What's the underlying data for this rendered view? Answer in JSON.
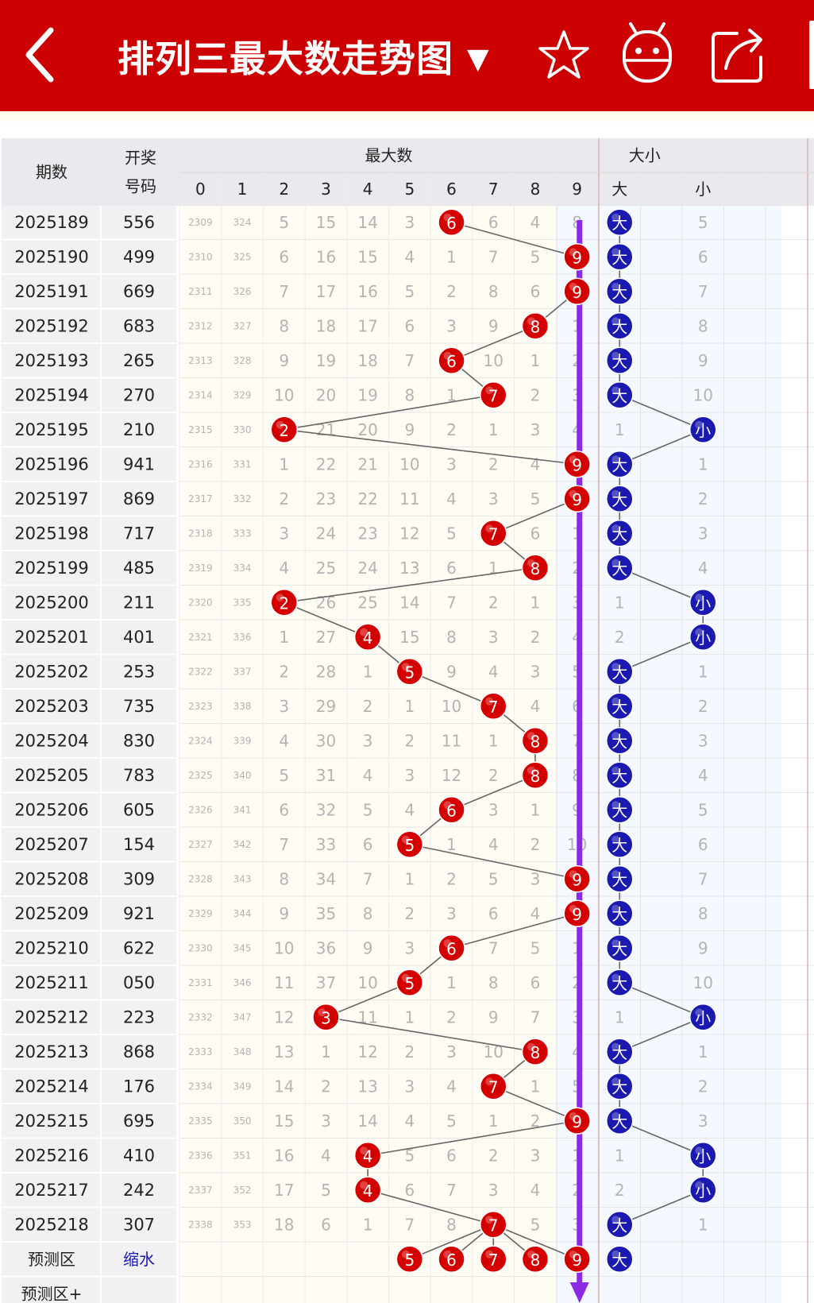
{
  "header": {
    "title": "排列三最大数走势图",
    "dropdown_glyph": "▼",
    "icons": [
      "back-arrow-icon",
      "star-icon",
      "robot-icon",
      "share-icon"
    ],
    "colors": {
      "bar": "#cc0000",
      "text": "#ffffff"
    }
  },
  "table": {
    "col_period": "期数",
    "col_draw": "开奖号码",
    "group_max": "最大数",
    "group_size": "大小",
    "size_big": "大",
    "size_small": "小",
    "digit_headers": [
      "0",
      "1",
      "2",
      "3",
      "4",
      "5",
      "6",
      "7",
      "8",
      "9"
    ],
    "rows": [
      {
        "period": "2025189",
        "draw": "556",
        "digits": [
          "2309",
          "324",
          "5",
          "15",
          "14",
          "3",
          "6",
          "6",
          "4",
          "8"
        ],
        "max": 6,
        "size": "大",
        "size_cells": [
          "大",
          "5"
        ]
      },
      {
        "period": "2025190",
        "draw": "499",
        "digits": [
          "2310",
          "325",
          "6",
          "16",
          "15",
          "4",
          "1",
          "7",
          "5",
          "9"
        ],
        "max": 9,
        "size": "大",
        "size_cells": [
          "大",
          "6"
        ]
      },
      {
        "period": "2025191",
        "draw": "669",
        "digits": [
          "2311",
          "326",
          "7",
          "17",
          "16",
          "5",
          "2",
          "8",
          "6",
          "9"
        ],
        "max": 9,
        "size": "大",
        "size_cells": [
          "大",
          "7"
        ]
      },
      {
        "period": "2025192",
        "draw": "683",
        "digits": [
          "2312",
          "327",
          "8",
          "18",
          "17",
          "6",
          "3",
          "9",
          "8",
          "1"
        ],
        "max": 8,
        "size": "大",
        "size_cells": [
          "大",
          "8"
        ]
      },
      {
        "period": "2025193",
        "draw": "265",
        "digits": [
          "2313",
          "328",
          "9",
          "19",
          "18",
          "7",
          "6",
          "10",
          "1",
          "2"
        ],
        "max": 6,
        "size": "大",
        "size_cells": [
          "大",
          "9"
        ]
      },
      {
        "period": "2025194",
        "draw": "270",
        "digits": [
          "2314",
          "329",
          "10",
          "20",
          "19",
          "8",
          "1",
          "7",
          "2",
          "3"
        ],
        "max": 7,
        "size": "大",
        "size_cells": [
          "大",
          "10"
        ]
      },
      {
        "period": "2025195",
        "draw": "210",
        "digits": [
          "2315",
          "330",
          "2",
          "21",
          "20",
          "9",
          "2",
          "1",
          "3",
          "4"
        ],
        "max": 2,
        "size": "小",
        "size_cells": [
          "1",
          "小"
        ]
      },
      {
        "period": "2025196",
        "draw": "941",
        "digits": [
          "2316",
          "331",
          "1",
          "22",
          "21",
          "10",
          "3",
          "2",
          "4",
          "9"
        ],
        "max": 9,
        "size": "大",
        "size_cells": [
          "大",
          "1"
        ]
      },
      {
        "period": "2025197",
        "draw": "869",
        "digits": [
          "2317",
          "332",
          "2",
          "23",
          "22",
          "11",
          "4",
          "3",
          "5",
          "9"
        ],
        "max": 9,
        "size": "大",
        "size_cells": [
          "大",
          "2"
        ]
      },
      {
        "period": "2025198",
        "draw": "717",
        "digits": [
          "2318",
          "333",
          "3",
          "24",
          "23",
          "12",
          "5",
          "7",
          "6",
          "1"
        ],
        "max": 7,
        "size": "大",
        "size_cells": [
          "大",
          "3"
        ]
      },
      {
        "period": "2025199",
        "draw": "485",
        "digits": [
          "2319",
          "334",
          "4",
          "25",
          "24",
          "13",
          "6",
          "1",
          "8",
          "2"
        ],
        "max": 8,
        "size": "大",
        "size_cells": [
          "大",
          "4"
        ]
      },
      {
        "period": "2025200",
        "draw": "211",
        "digits": [
          "2320",
          "335",
          "2",
          "26",
          "25",
          "14",
          "7",
          "2",
          "1",
          "3"
        ],
        "max": 2,
        "size": "小",
        "size_cells": [
          "1",
          "小"
        ]
      },
      {
        "period": "2025201",
        "draw": "401",
        "digits": [
          "2321",
          "336",
          "1",
          "27",
          "4",
          "15",
          "8",
          "3",
          "2",
          "4"
        ],
        "max": 4,
        "size": "小",
        "size_cells": [
          "2",
          "小"
        ]
      },
      {
        "period": "2025202",
        "draw": "253",
        "digits": [
          "2322",
          "337",
          "2",
          "28",
          "1",
          "5",
          "9",
          "4",
          "3",
          "5"
        ],
        "max": 5,
        "size": "大",
        "size_cells": [
          "大",
          "1"
        ]
      },
      {
        "period": "2025203",
        "draw": "735",
        "digits": [
          "2323",
          "338",
          "3",
          "29",
          "2",
          "1",
          "10",
          "7",
          "4",
          "6"
        ],
        "max": 7,
        "size": "大",
        "size_cells": [
          "大",
          "2"
        ]
      },
      {
        "period": "2025204",
        "draw": "830",
        "digits": [
          "2324",
          "339",
          "4",
          "30",
          "3",
          "2",
          "11",
          "1",
          "8",
          "7"
        ],
        "max": 8,
        "size": "大",
        "size_cells": [
          "大",
          "3"
        ]
      },
      {
        "period": "2025205",
        "draw": "783",
        "digits": [
          "2325",
          "340",
          "5",
          "31",
          "4",
          "3",
          "12",
          "2",
          "8",
          "8"
        ],
        "max": 8,
        "size": "大",
        "size_cells": [
          "大",
          "4"
        ]
      },
      {
        "period": "2025206",
        "draw": "605",
        "digits": [
          "2326",
          "341",
          "6",
          "32",
          "5",
          "4",
          "6",
          "3",
          "1",
          "9"
        ],
        "max": 6,
        "size": "大",
        "size_cells": [
          "大",
          "5"
        ]
      },
      {
        "period": "2025207",
        "draw": "154",
        "digits": [
          "2327",
          "342",
          "7",
          "33",
          "6",
          "5",
          "1",
          "4",
          "2",
          "10"
        ],
        "max": 5,
        "size": "大",
        "size_cells": [
          "大",
          "6"
        ]
      },
      {
        "period": "2025208",
        "draw": "309",
        "digits": [
          "2328",
          "343",
          "8",
          "34",
          "7",
          "1",
          "2",
          "5",
          "3",
          "9"
        ],
        "max": 9,
        "size": "大",
        "size_cells": [
          "大",
          "7"
        ]
      },
      {
        "period": "2025209",
        "draw": "921",
        "digits": [
          "2329",
          "344",
          "9",
          "35",
          "8",
          "2",
          "3",
          "6",
          "4",
          "9"
        ],
        "max": 9,
        "size": "大",
        "size_cells": [
          "大",
          "8"
        ]
      },
      {
        "period": "2025210",
        "draw": "622",
        "digits": [
          "2330",
          "345",
          "10",
          "36",
          "9",
          "3",
          "6",
          "7",
          "5",
          "1"
        ],
        "max": 6,
        "size": "大",
        "size_cells": [
          "大",
          "9"
        ]
      },
      {
        "period": "2025211",
        "draw": "050",
        "digits": [
          "2331",
          "346",
          "11",
          "37",
          "10",
          "5",
          "1",
          "8",
          "6",
          "2"
        ],
        "max": 5,
        "size": "大",
        "size_cells": [
          "大",
          "10"
        ]
      },
      {
        "period": "2025212",
        "draw": "223",
        "digits": [
          "2332",
          "347",
          "12",
          "3",
          "11",
          "1",
          "2",
          "9",
          "7",
          "3"
        ],
        "max": 3,
        "size": "小",
        "size_cells": [
          "1",
          "小"
        ]
      },
      {
        "period": "2025213",
        "draw": "868",
        "digits": [
          "2333",
          "348",
          "13",
          "1",
          "12",
          "2",
          "3",
          "10",
          "8",
          "4"
        ],
        "max": 8,
        "size": "大",
        "size_cells": [
          "大",
          "1"
        ]
      },
      {
        "period": "2025214",
        "draw": "176",
        "digits": [
          "2334",
          "349",
          "14",
          "2",
          "13",
          "3",
          "4",
          "7",
          "1",
          "5"
        ],
        "max": 7,
        "size": "大",
        "size_cells": [
          "大",
          "2"
        ]
      },
      {
        "period": "2025215",
        "draw": "695",
        "digits": [
          "2335",
          "350",
          "15",
          "3",
          "14",
          "4",
          "5",
          "1",
          "2",
          "9"
        ],
        "max": 9,
        "size": "大",
        "size_cells": [
          "大",
          "3"
        ]
      },
      {
        "period": "2025216",
        "draw": "410",
        "digits": [
          "2336",
          "351",
          "16",
          "4",
          "4",
          "5",
          "6",
          "2",
          "3",
          "1"
        ],
        "max": 4,
        "size": "小",
        "size_cells": [
          "1",
          "小"
        ]
      },
      {
        "period": "2025217",
        "draw": "242",
        "digits": [
          "2337",
          "352",
          "17",
          "5",
          "4",
          "6",
          "7",
          "3",
          "4",
          "2"
        ],
        "max": 4,
        "size": "小",
        "size_cells": [
          "2",
          "小"
        ]
      },
      {
        "period": "2025218",
        "draw": "307",
        "digits": [
          "2338",
          "353",
          "18",
          "6",
          "1",
          "7",
          "8",
          "7",
          "5",
          "3"
        ],
        "max": 7,
        "size": "大",
        "size_cells": [
          "大",
          "1"
        ]
      }
    ],
    "prediction": {
      "label": "预测区",
      "draw_label": "缩水",
      "balls": [
        5,
        6,
        7,
        8,
        9
      ],
      "size": "大"
    },
    "prediction_plus": {
      "label": "预测区+"
    }
  },
  "colors": {
    "red_ball": "#d40000",
    "blue_ball": "#1a1ab0",
    "trend_arrow": "#8a2be2",
    "header_bg": "#e9e9ee",
    "stripe_grey": "#f1f1f4",
    "digit_area_bg": "#fffcf4",
    "size_area_bg": "#f3f9ff",
    "missing_text": "#b4b4b4"
  }
}
